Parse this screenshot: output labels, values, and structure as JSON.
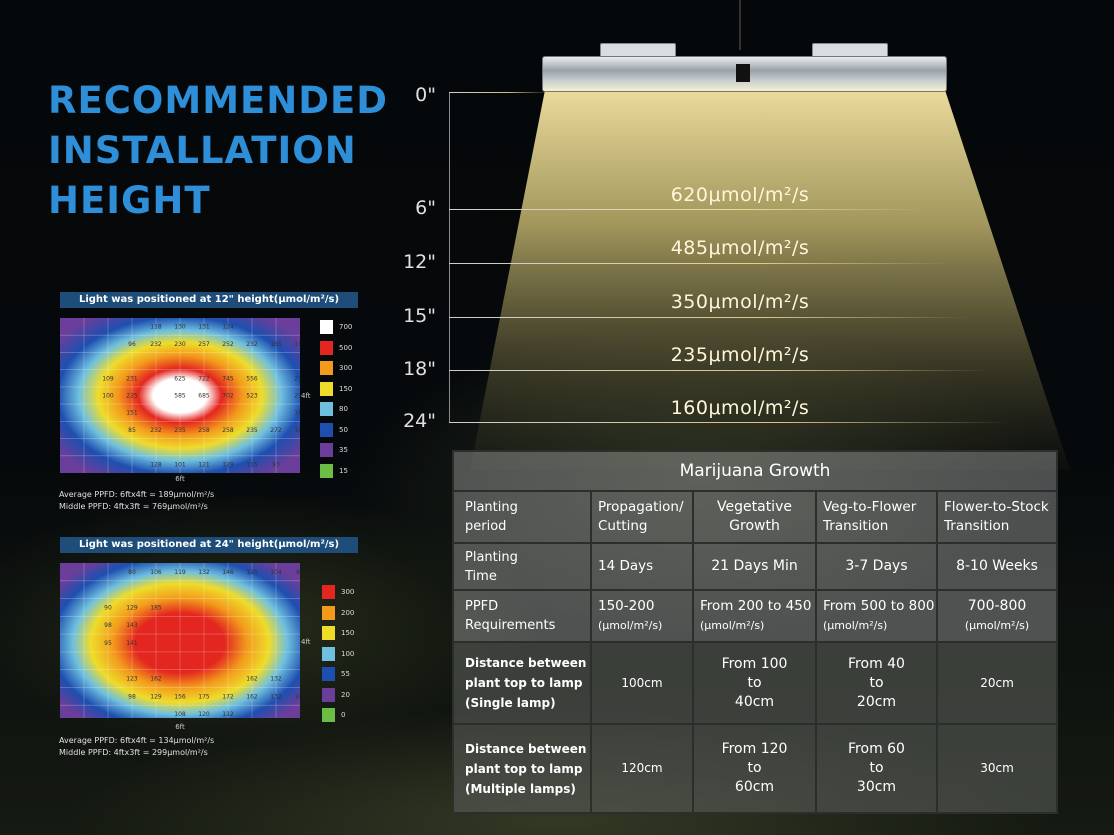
{
  "title": {
    "line1": "RECOMMENDED",
    "line2": "INSTALLATION",
    "line3": "HEIGHT"
  },
  "heights": [
    {
      "height": "0\"",
      "ppfd": ""
    },
    {
      "height": "6\"",
      "ppfd": "620μmol/m²/s"
    },
    {
      "height": "12\"",
      "ppfd": "485μmol/m²/s"
    },
    {
      "height": "15\"",
      "ppfd": "350μmol/m²/s"
    },
    {
      "height": "18\"",
      "ppfd": "235μmol/m²/s"
    },
    {
      "height": "24\"",
      "ppfd": "160μmol/m²/s"
    }
  ],
  "heatmap12": {
    "header": "Light was positioned at 12\" height(μmol/m²/s)",
    "width_label": "6ft",
    "depth_label": "4ft",
    "avg": "Average PPFD: 6ftx4ft = 189μmol/m²/s",
    "mid": "Middle PPFD: 4ftx3ft = 769μmol/m²/s",
    "scale": [
      {
        "label": "700",
        "color": "#ffffff"
      },
      {
        "label": "500",
        "color": "#e3261f"
      },
      {
        "label": "300",
        "color": "#f39a1c"
      },
      {
        "label": "150",
        "color": "#eedc2a"
      },
      {
        "label": "80",
        "color": "#6fc0df"
      },
      {
        "label": "50",
        "color": "#1e4fb0"
      },
      {
        "label": "35",
        "color": "#6a3e9a"
      },
      {
        "label": "15",
        "color": "#6bbd45"
      }
    ],
    "rows": [
      [
        "",
        "",
        "",
        "118",
        "130",
        "131",
        "124",
        "",
        "",
        ""
      ],
      [
        "",
        "",
        "96",
        "232",
        "230",
        "257",
        "252",
        "232",
        "165",
        "115"
      ],
      [
        "",
        "",
        "",
        "",
        "",
        "",
        "",
        "",
        "",
        ""
      ],
      [
        "",
        "109",
        "231",
        "",
        "625",
        "722",
        "745",
        "556",
        "",
        "235"
      ],
      [
        "",
        "100",
        "225",
        "",
        "585",
        "685",
        "702",
        "523",
        "",
        "216"
      ],
      [
        "",
        "",
        "151",
        "",
        "",
        "",
        "",
        "",
        "",
        "185"
      ],
      [
        "",
        "",
        "85",
        "232",
        "235",
        "258",
        "258",
        "235",
        "272",
        "105"
      ],
      [
        "",
        "",
        "",
        "",
        "",
        "",
        "",
        "",
        "",
        ""
      ],
      [
        "",
        "",
        "",
        "128",
        "101",
        "121",
        "129",
        "115",
        "93",
        ""
      ]
    ]
  },
  "heatmap24": {
    "header": "Light was positioned at 24\" height(μmol/m²/s)",
    "width_label": "6ft",
    "depth_label": "4ft",
    "avg": "Average PPFD: 6ftx4ft = 134μmol/m²/s",
    "mid": "Middle PPFD: 4ftx3ft = 299μmol/m²/s",
    "scale": [
      {
        "label": "300",
        "color": "#e3261f"
      },
      {
        "label": "200",
        "color": "#f39a1c"
      },
      {
        "label": "150",
        "color": "#eedc2a"
      },
      {
        "label": "100",
        "color": "#6fc0df"
      },
      {
        "label": "55",
        "color": "#1e4fb0"
      },
      {
        "label": "20",
        "color": "#6a3e9a"
      },
      {
        "label": "0",
        "color": "#6bbd45"
      }
    ],
    "rows": [
      [
        "",
        "",
        "80",
        "106",
        "119",
        "132",
        "146",
        "125",
        "104",
        "88"
      ],
      [
        "",
        "",
        "",
        "",
        "",
        "",
        "",
        "",
        "",
        ""
      ],
      [
        "",
        "90",
        "129",
        "185",
        "",
        "",
        "",
        "",
        "",
        ""
      ],
      [
        "",
        "98",
        "143",
        "",
        "",
        "",
        "",
        "",
        "",
        ""
      ],
      [
        "",
        "95",
        "141",
        "",
        "",
        "",
        "",
        "",
        "",
        ""
      ],
      [
        "",
        "",
        "",
        "",
        "",
        "",
        "",
        "",
        "",
        ""
      ],
      [
        "",
        "",
        "123",
        "162",
        "",
        "",
        "",
        "162",
        "132",
        ""
      ],
      [
        "",
        "",
        "98",
        "129",
        "156",
        "175",
        "172",
        "162",
        "132",
        "106"
      ],
      [
        "",
        "",
        "",
        "",
        "108",
        "120",
        "112",
        "",
        "",
        ""
      ]
    ]
  },
  "table": {
    "caption": "Marijuana Growth",
    "header": {
      "label": [
        "Planting",
        "period"
      ],
      "cols": [
        [
          "Propagation/",
          "Cutting"
        ],
        [
          "Vegetative",
          "Growth"
        ],
        [
          "Veg-to-Flower",
          "Transition"
        ],
        [
          "Flower-to-Stock",
          "Transition"
        ]
      ]
    },
    "time": {
      "label": [
        "Planting",
        "Time"
      ],
      "values": [
        "14 Days",
        "21 Days Min",
        "3-7 Days",
        "8-10 Weeks"
      ]
    },
    "ppfd": {
      "label": [
        "PPFD",
        "Requirements"
      ],
      "values": [
        "150-200",
        "From 200 to 450",
        "From 500 to 800",
        "700-800"
      ],
      "unit": "(μmol/m²/s)"
    },
    "single": {
      "label": [
        "Distance between",
        "plant top to lamp",
        "(Single lamp)"
      ],
      "values": [
        [
          "100cm"
        ],
        [
          "From 100",
          "to",
          "40cm"
        ],
        [
          "From 40",
          "to",
          "20cm"
        ],
        [
          "20cm"
        ]
      ]
    },
    "multiple": {
      "label": [
        "Distance between",
        "plant top to lamp",
        "(Multiple lamps)"
      ],
      "values": [
        [
          "120cm"
        ],
        [
          "From 120",
          "to",
          "60cm"
        ],
        [
          "From 60",
          "to",
          "30cm"
        ],
        [
          "30cm"
        ]
      ]
    }
  }
}
